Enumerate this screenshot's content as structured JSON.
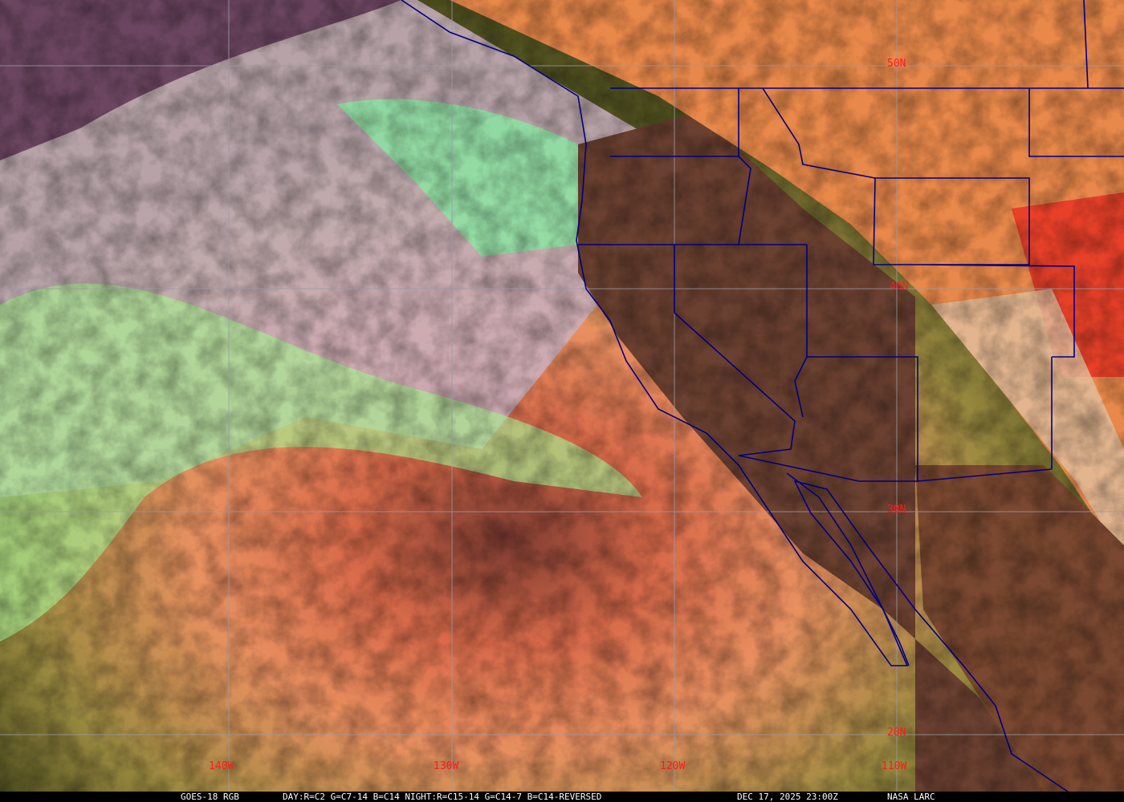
{
  "image": {
    "kind": "satellite-rgb-composite",
    "grid_color": "#9a9aa8",
    "border_color": "#000080",
    "label_color": "#ff1a1a"
  },
  "latitude_labels": [
    "50N",
    "40N",
    "30N",
    "20N"
  ],
  "longitude_labels": [
    "140W",
    "130W",
    "120W",
    "110W"
  ],
  "caption": {
    "satellite": "GOES-18 RGB",
    "recipe": "DAY:R=C2 G=C7-14 B=C14 NIGHT:R=C15-14 G=C14-7 B=C14-REVERSED",
    "datetime": "DEC 17, 2025 23:00Z",
    "credit": "NASA LARC"
  }
}
